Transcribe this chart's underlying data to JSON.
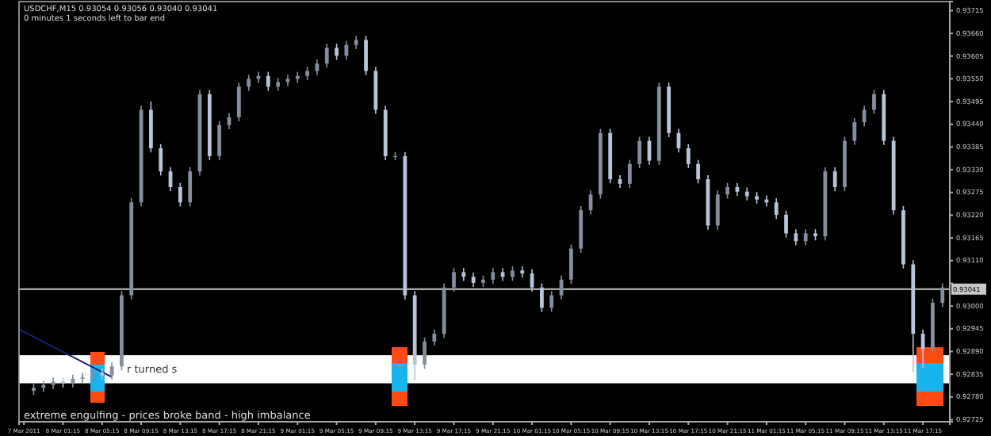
{
  "chart_data": {
    "type": "candlestick",
    "title": "USDCHF,M15  0.93054 0.93056 0.93040 0.93041",
    "subtitle": "0 minutes 1 seconds left to bar end",
    "annotations": [
      "extreme engulfing - prices broke band - high imbalance"
    ],
    "colors": [
      "#858e9d",
      "#858e9d",
      "#858e9d",
      "#b8c4d8",
      "#858e9d",
      "#858e9d",
      "#858e9d",
      "#b8c4d8",
      "#858e9d",
      "#858e9d",
      "#858e9d",
      "#858e9d",
      "#b8c4d8",
      "#b8c4d8",
      "#b8c4d8",
      "#b8c4d8",
      "#858e9d",
      "#858e9d",
      "#b8c4d8",
      "#858e9d",
      "#858e9d",
      "#858e9d",
      "#858e9d",
      "#858e9d",
      "#b8c4d8",
      "#858e9d",
      "#858e9d",
      "#858e9d",
      "#858e9d",
      "#858e9d",
      "#858e9d",
      "#b8c4d8",
      "#858e9d",
      "#858e9d",
      "#b8c4d8",
      "#b8c4d8",
      "#b8c4d8",
      "#858e9d",
      "#b8c4d8",
      "#b8c4d8",
      "#858e9d",
      "#858e9d",
      "#858e9d",
      "#858e9d",
      "#b8c4d8",
      "#b8c4d8",
      "#858e9d",
      "#858e9d",
      "#b8c4d8",
      "#858e9d",
      "#b8c4d8",
      "#b8c4d8",
      "#b8c4d8",
      "#858e9d",
      "#858e9d",
      "#858e9d",
      "#858e9d",
      "#858e9d",
      "#858e9d",
      "#b8c4d8",
      "#b8c4d8",
      "#858e9d",
      "#858e9d",
      "#b8c4d8",
      "#858e9d",
      "#b8c4d8",
      "#b8c4d8",
      "#b8c4d8",
      "#b8c4d8",
      "#b8c4d8",
      "#858e9d",
      "#858e9d",
      "#b8c4d8",
      "#b8c4d8",
      "#b8c4d8",
      "#b8c4d8",
      "#b8c4d8",
      "#b8c4d8",
      "#b8c4d8",
      "#858e9d",
      "#b8c4d8",
      "#858e9d",
      "#b8c4d8",
      "#858e9d",
      "#858e9d",
      "#858e9d",
      "#858e9d",
      "#b8c4d8",
      "#b8c4d8",
      "#b8c4d8",
      "#b8c4d8",
      "#b8c4d8",
      "#858e9d",
      "#858e9d"
    ],
    "x": [
      "2011-03-07T22:15",
      "2011-03-07T23:15",
      "2011-03-08T00:15",
      "2011-03-08T01:15",
      "2011-03-08T02:15",
      "2011-03-08T03:15",
      "2011-03-08T04:15",
      "2011-03-08T05:15",
      "2011-03-08T06:15",
      "2011-03-08T07:15",
      "2011-03-08T08:15",
      "2011-03-08T09:15",
      "2011-03-08T10:15",
      "2011-03-08T11:15",
      "2011-03-08T12:15",
      "2011-03-08T13:15",
      "2011-03-08T14:15",
      "2011-03-08T15:15",
      "2011-03-08T16:15",
      "2011-03-08T17:15",
      "2011-03-08T18:15",
      "2011-03-08T19:15",
      "2011-03-08T20:15",
      "2011-03-08T21:15",
      "2011-03-08T22:15",
      "2011-03-08T23:15",
      "2011-03-09T00:15",
      "2011-03-09T01:15",
      "2011-03-09T02:15",
      "2011-03-09T03:15",
      "2011-03-09T04:15",
      "2011-03-09T05:15",
      "2011-03-09T06:15",
      "2011-03-09T07:15",
      "2011-03-09T08:15",
      "2011-03-09T09:15",
      "2011-03-09T10:15",
      "2011-03-09T11:15",
      "2011-03-09T12:15",
      "2011-03-09T13:15",
      "2011-03-09T14:15",
      "2011-03-09T15:15",
      "2011-03-09T16:15",
      "2011-03-09T17:15",
      "2011-03-09T18:15",
      "2011-03-09T19:15",
      "2011-03-09T20:15",
      "2011-03-09T21:15",
      "2011-03-09T22:15",
      "2011-03-09T23:15",
      "2011-03-10T00:15",
      "2011-03-10T01:15",
      "2011-03-10T02:15",
      "2011-03-10T03:15",
      "2011-03-10T04:15",
      "2011-03-10T05:15",
      "2011-03-10T06:15",
      "2011-03-10T07:15",
      "2011-03-10T08:15",
      "2011-03-10T09:15",
      "2011-03-10T10:15",
      "2011-03-10T11:15",
      "2011-03-10T12:15",
      "2011-03-10T13:15",
      "2011-03-10T14:15",
      "2011-03-10T15:15",
      "2011-03-10T16:15",
      "2011-03-10T17:15",
      "2011-03-10T18:15",
      "2011-03-10T19:15",
      "2011-03-10T20:15",
      "2011-03-10T21:15",
      "2011-03-10T22:15",
      "2011-03-10T23:15",
      "2011-03-11T00:15",
      "2011-03-11T01:15",
      "2011-03-11T02:15",
      "2011-03-11T03:15",
      "2011-03-11T04:15",
      "2011-03-11T05:15",
      "2011-03-11T06:15",
      "2011-03-11T07:15",
      "2011-03-11T08:15",
      "2011-03-11T09:15",
      "2011-03-11T10:15",
      "2011-03-11T11:15",
      "2011-03-11T12:15",
      "2011-03-11T13:15",
      "2011-03-11T14:15",
      "2011-03-11T15:15",
      "2011-03-11T16:15",
      "2011-03-11T17:15",
      "2011-03-11T18:15",
      "2011-03-11T19:15"
    ],
    "ohlc": [
      [
        0.92795,
        0.92812,
        0.92785,
        0.92802
      ],
      [
        0.92802,
        0.92819,
        0.92792,
        0.92809
      ],
      [
        0.92809,
        0.92827,
        0.92799,
        0.92817
      ],
      [
        0.92817,
        0.92827,
        0.92803,
        0.92813
      ],
      [
        0.92813,
        0.92834,
        0.92803,
        0.92824
      ],
      [
        0.92824,
        0.92838,
        0.92814,
        0.92828
      ],
      [
        0.92828,
        0.92849,
        0.92818,
        0.92839
      ],
      [
        0.92839,
        0.92849,
        0.92822,
        0.92832
      ],
      [
        0.92832,
        0.92864,
        0.92822,
        0.92854
      ],
      [
        0.92854,
        0.93036,
        0.92844,
        0.93026
      ],
      [
        0.93026,
        0.93261,
        0.93016,
        0.93251
      ],
      [
        0.93251,
        0.93485,
        0.93241,
        0.93475
      ],
      [
        0.93475,
        0.93495,
        0.93372,
        0.93382
      ],
      [
        0.93382,
        0.93392,
        0.93316,
        0.93326
      ],
      [
        0.93326,
        0.93336,
        0.93278,
        0.93288
      ],
      [
        0.93288,
        0.93298,
        0.93241,
        0.93251
      ],
      [
        0.93251,
        0.93336,
        0.93241,
        0.93326
      ],
      [
        0.93326,
        0.93523,
        0.93316,
        0.93513
      ],
      [
        0.93513,
        0.93523,
        0.93353,
        0.93363
      ],
      [
        0.93363,
        0.93448,
        0.93353,
        0.93438
      ],
      [
        0.93438,
        0.93467,
        0.93428,
        0.93457
      ],
      [
        0.93457,
        0.93541,
        0.93447,
        0.93531
      ],
      [
        0.93531,
        0.9356,
        0.93521,
        0.9355
      ],
      [
        0.9355,
        0.93567,
        0.9354,
        0.93557
      ],
      [
        0.93557,
        0.93567,
        0.93521,
        0.93531
      ],
      [
        0.93531,
        0.93552,
        0.93521,
        0.93542
      ],
      [
        0.93542,
        0.9356,
        0.93532,
        0.9355
      ],
      [
        0.9355,
        0.93567,
        0.9354,
        0.93557
      ],
      [
        0.93557,
        0.93579,
        0.93547,
        0.93569
      ],
      [
        0.93569,
        0.93597,
        0.93559,
        0.93587
      ],
      [
        0.93587,
        0.93635,
        0.93577,
        0.93625
      ],
      [
        0.93625,
        0.93635,
        0.93596,
        0.93606
      ],
      [
        0.93606,
        0.93642,
        0.93596,
        0.93632
      ],
      [
        0.93632,
        0.93654,
        0.93622,
        0.93644
      ],
      [
        0.93644,
        0.93654,
        0.93559,
        0.93569
      ],
      [
        0.93569,
        0.93579,
        0.93465,
        0.93475
      ],
      [
        0.93475,
        0.93485,
        0.93353,
        0.93363
      ],
      [
        0.93363,
        0.93373,
        0.93353,
        0.93363
      ],
      [
        0.93363,
        0.93373,
        0.93016,
        0.93026
      ],
      [
        0.93026,
        0.93036,
        0.9282,
        0.92858
      ],
      [
        0.92858,
        0.92924,
        0.92848,
        0.92914
      ],
      [
        0.92914,
        0.92943,
        0.92904,
        0.92933
      ],
      [
        0.92933,
        0.93055,
        0.92923,
        0.93045
      ],
      [
        0.93045,
        0.93092,
        0.93035,
        0.93082
      ],
      [
        0.93082,
        0.93092,
        0.93061,
        0.93071
      ],
      [
        0.93071,
        0.93081,
        0.93046,
        0.93056
      ],
      [
        0.93056,
        0.93074,
        0.93046,
        0.93064
      ],
      [
        0.93064,
        0.93092,
        0.93054,
        0.93082
      ],
      [
        0.93082,
        0.93092,
        0.93061,
        0.93071
      ],
      [
        0.93071,
        0.93096,
        0.93061,
        0.93086
      ],
      [
        0.93086,
        0.93096,
        0.93069,
        0.93079
      ],
      [
        0.93079,
        0.93089,
        0.93035,
        0.93045
      ],
      [
        0.93045,
        0.93055,
        0.92986,
        0.92996
      ],
      [
        0.92996,
        0.93036,
        0.92986,
        0.93026
      ],
      [
        0.93026,
        0.93074,
        0.93016,
        0.93064
      ],
      [
        0.93064,
        0.93149,
        0.93054,
        0.93139
      ],
      [
        0.93139,
        0.93242,
        0.93129,
        0.93232
      ],
      [
        0.93232,
        0.9328,
        0.93222,
        0.9327
      ],
      [
        0.9327,
        0.93429,
        0.9326,
        0.93419
      ],
      [
        0.93419,
        0.93429,
        0.93297,
        0.93307
      ],
      [
        0.93307,
        0.93317,
        0.93286,
        0.93296
      ],
      [
        0.93296,
        0.93354,
        0.93286,
        0.93344
      ],
      [
        0.93344,
        0.9341,
        0.93334,
        0.934
      ],
      [
        0.934,
        0.9341,
        0.93342,
        0.93352
      ],
      [
        0.93352,
        0.93541,
        0.93342,
        0.93531
      ],
      [
        0.93531,
        0.93541,
        0.93409,
        0.93419
      ],
      [
        0.93419,
        0.93429,
        0.93372,
        0.93382
      ],
      [
        0.93382,
        0.93392,
        0.93334,
        0.93344
      ],
      [
        0.93344,
        0.93354,
        0.93297,
        0.93307
      ],
      [
        0.93307,
        0.93317,
        0.93185,
        0.93195
      ],
      [
        0.93195,
        0.9328,
        0.93185,
        0.9327
      ],
      [
        0.9327,
        0.93298,
        0.9326,
        0.93288
      ],
      [
        0.93288,
        0.93298,
        0.93267,
        0.93277
      ],
      [
        0.93277,
        0.93287,
        0.93256,
        0.93266
      ],
      [
        0.93266,
        0.93276,
        0.93248,
        0.93258
      ],
      [
        0.93258,
        0.93268,
        0.93241,
        0.93251
      ],
      [
        0.93251,
        0.93261,
        0.93211,
        0.93221
      ],
      [
        0.93221,
        0.93231,
        0.93166,
        0.93176
      ],
      [
        0.93176,
        0.93186,
        0.93147,
        0.93157
      ],
      [
        0.93157,
        0.93186,
        0.93147,
        0.93176
      ],
      [
        0.93176,
        0.93186,
        0.93159,
        0.93169
      ],
      [
        0.93169,
        0.93336,
        0.93159,
        0.93326
      ],
      [
        0.93326,
        0.93336,
        0.93278,
        0.93288
      ],
      [
        0.93288,
        0.9341,
        0.93278,
        0.934
      ],
      [
        0.934,
        0.93455,
        0.9339,
        0.93445
      ],
      [
        0.93445,
        0.93485,
        0.93435,
        0.93475
      ],
      [
        0.93475,
        0.93523,
        0.93465,
        0.93513
      ],
      [
        0.93513,
        0.93523,
        0.9339,
        0.934
      ],
      [
        0.934,
        0.9341,
        0.93222,
        0.93232
      ],
      [
        0.93232,
        0.93242,
        0.93091,
        0.93101
      ],
      [
        0.93101,
        0.93111,
        0.9284,
        0.92933
      ],
      [
        0.92933,
        0.92943,
        0.9285,
        0.92896
      ],
      [
        0.92896,
        0.93018,
        0.92886,
        0.93008
      ],
      [
        0.93008,
        0.93055,
        0.92998,
        0.93045
      ]
    ],
    "series": [
      {
        "type": "line",
        "color": "#1c1c78",
        "x": [
          "2011-03-07T20:45",
          "2011-03-08T06:15"
        ],
        "values": [
          0.92944,
          0.92828
        ]
      }
    ],
    "xlim": [
      "2011-03-07T20:45",
      "2011-03-11T20:00"
    ],
    "xticks": [
      {
        "value": "2011-03-07T21:15",
        "label": "7 Mar 2011"
      },
      {
        "value": "2011-03-08T01:15",
        "label": "8 Mar 01:15"
      },
      {
        "value": "2011-03-08T05:15",
        "label": "8 Mar 05:15"
      },
      {
        "value": "2011-03-08T09:15",
        "label": "8 Mar 09:15"
      },
      {
        "value": "2011-03-08T13:15",
        "label": "8 Mar 13:15"
      },
      {
        "value": "2011-03-08T17:15",
        "label": "8 Mar 17:15"
      },
      {
        "value": "2011-03-08T21:15",
        "label": "8 Mar 21:15"
      },
      {
        "value": "2011-03-09T01:15",
        "label": "9 Mar 01:15"
      },
      {
        "value": "2011-03-09T05:15",
        "label": "9 Mar 05:15"
      },
      {
        "value": "2011-03-09T09:15",
        "label": "9 Mar 09:15"
      },
      {
        "value": "2011-03-09T13:15",
        "label": "9 Mar 13:15"
      },
      {
        "value": "2011-03-09T17:15",
        "label": "9 Mar 17:15"
      },
      {
        "value": "2011-03-09T21:15",
        "label": "9 Mar 21:15"
      },
      {
        "value": "2011-03-10T01:15",
        "label": "10 Mar 01:15"
      },
      {
        "value": "2011-03-10T05:15",
        "label": "10 Mar 05:15"
      },
      {
        "value": "2011-03-10T09:15",
        "label": "10 Mar 09:15"
      },
      {
        "value": "2011-03-10T13:15",
        "label": "10 Mar 13:15"
      },
      {
        "value": "2011-03-10T17:15",
        "label": "10 Mar 17:15"
      },
      {
        "value": "2011-03-10T21:15",
        "label": "10 Mar 21:15"
      },
      {
        "value": "2011-03-11T01:15",
        "label": "11 Mar 01:15"
      },
      {
        "value": "2011-03-11T05:15",
        "label": "11 Mar 05:15"
      },
      {
        "value": "2011-03-11T09:15",
        "label": "11 Mar 09:15"
      },
      {
        "value": "2011-03-11T13:15",
        "label": "11 Mar 13:15"
      },
      {
        "value": "2011-03-11T17:15",
        "label": "11 Mar 17:15"
      }
    ],
    "ylim": [
      0.9272,
      0.93737
    ],
    "yticks": [
      {
        "value": 0.93715,
        "label": "0.93715"
      },
      {
        "value": 0.9366,
        "label": "0.93660"
      },
      {
        "value": 0.93605,
        "label": "0.93605"
      },
      {
        "value": 0.9355,
        "label": "0.93550"
      },
      {
        "value": 0.93495,
        "label": "0.93495"
      },
      {
        "value": 0.9344,
        "label": "0.93440"
      },
      {
        "value": 0.93385,
        "label": "0.93385"
      },
      {
        "value": 0.9333,
        "label": "0.93330"
      },
      {
        "value": 0.93275,
        "label": "0.93275"
      },
      {
        "value": 0.9322,
        "label": "0.93220"
      },
      {
        "value": 0.93165,
        "label": "0.93165"
      },
      {
        "value": 0.9311,
        "label": "0.93110"
      },
      {
        "value": 0.93055,
        "label": null
      },
      {
        "value": 0.93,
        "label": "0.93000"
      },
      {
        "value": 0.92945,
        "label": "0.92945"
      },
      {
        "value": 0.9289,
        "label": "0.92890"
      },
      {
        "value": 0.92835,
        "label": "0.92835"
      },
      {
        "value": 0.9278,
        "label": "0.92780"
      },
      {
        "value": 0.92725,
        "label": "0.92725"
      }
    ],
    "ref_lines": [
      {
        "axis": "y",
        "value": 0.93041,
        "label": "0.93041",
        "color": "#c8c8c8"
      }
    ],
    "bands": [
      {
        "axis": "y",
        "from": 0.92813,
        "to": 0.92881,
        "label": "r turned s",
        "color": "#ffffff"
      }
    ]
  }
}
